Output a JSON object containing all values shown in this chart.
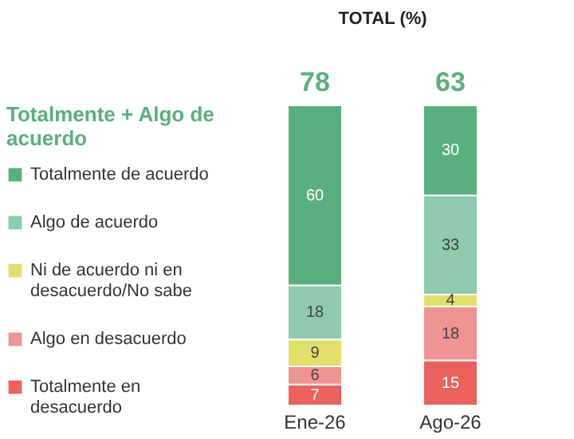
{
  "chart_data": {
    "type": "bar",
    "stacked": true,
    "title": "TOTAL (%)",
    "legend_title": "Totalmente + Algo de acuerdo",
    "legend": "left",
    "categories": [
      "Ene-26",
      "Ago-26"
    ],
    "data_labels": true,
    "annotations": [
      {
        "text": "78",
        "x": "Ene-26",
        "y": 100
      },
      {
        "text": "63",
        "x": "Ago-26",
        "y": 100
      }
    ],
    "series": [
      {
        "name": "Totalmente en desacuerdo",
        "color": "#e9625e",
        "values": [
          7,
          15
        ]
      },
      {
        "name": "Algo en desacuerdo",
        "color": "#ef9393",
        "values": [
          6,
          18
        ]
      },
      {
        "name": "Ni de acuerdo ni en desacuerdo/No sabe",
        "color": "#e2e06a",
        "values": [
          9,
          4
        ]
      },
      {
        "name": "Algo de acuerdo",
        "color": "#8fcaae",
        "values": [
          18,
          33
        ]
      },
      {
        "name": "Totalmente de acuerdo",
        "color": "#5aaf7e",
        "values": [
          60,
          30
        ]
      }
    ]
  }
}
